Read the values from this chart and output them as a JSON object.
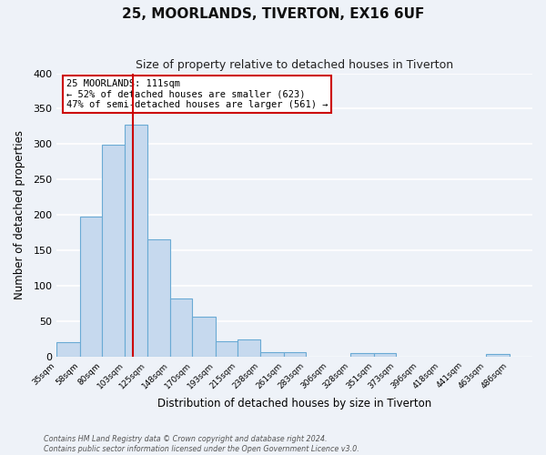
{
  "title": "25, MOORLANDS, TIVERTON, EX16 6UF",
  "subtitle": "Size of property relative to detached houses in Tiverton",
  "xlabel": "Distribution of detached houses by size in Tiverton",
  "ylabel": "Number of detached properties",
  "bin_labels": [
    "35sqm",
    "58sqm",
    "80sqm",
    "103sqm",
    "125sqm",
    "148sqm",
    "170sqm",
    "193sqm",
    "215sqm",
    "238sqm",
    "261sqm",
    "283sqm",
    "306sqm",
    "328sqm",
    "351sqm",
    "373sqm",
    "396sqm",
    "418sqm",
    "441sqm",
    "463sqm",
    "486sqm"
  ],
  "bar_values": [
    20,
    197,
    299,
    328,
    165,
    82,
    56,
    21,
    24,
    6,
    6,
    0,
    0,
    5,
    5,
    0,
    0,
    0,
    0,
    3,
    0
  ],
  "bar_color": "#c6d9ee",
  "bar_edge_color": "#6aaad4",
  "vline_x": 111,
  "vline_color": "#cc0000",
  "annotation_text": "25 MOORLANDS: 111sqm\n← 52% of detached houses are smaller (623)\n47% of semi-detached houses are larger (561) →",
  "annotation_box_color": "#ffffff",
  "annotation_box_edge": "#cc0000",
  "ylim": [
    0,
    400
  ],
  "yticks": [
    0,
    50,
    100,
    150,
    200,
    250,
    300,
    350,
    400
  ],
  "footer1": "Contains HM Land Registry data © Crown copyright and database right 2024.",
  "footer2": "Contains public sector information licensed under the Open Government Licence v3.0.",
  "background_color": "#eef2f8",
  "grid_color": "#ffffff",
  "bin_edges": [
    35,
    58,
    80,
    103,
    125,
    148,
    170,
    193,
    215,
    238,
    261,
    283,
    306,
    328,
    351,
    373,
    396,
    418,
    441,
    463,
    486,
    509
  ]
}
